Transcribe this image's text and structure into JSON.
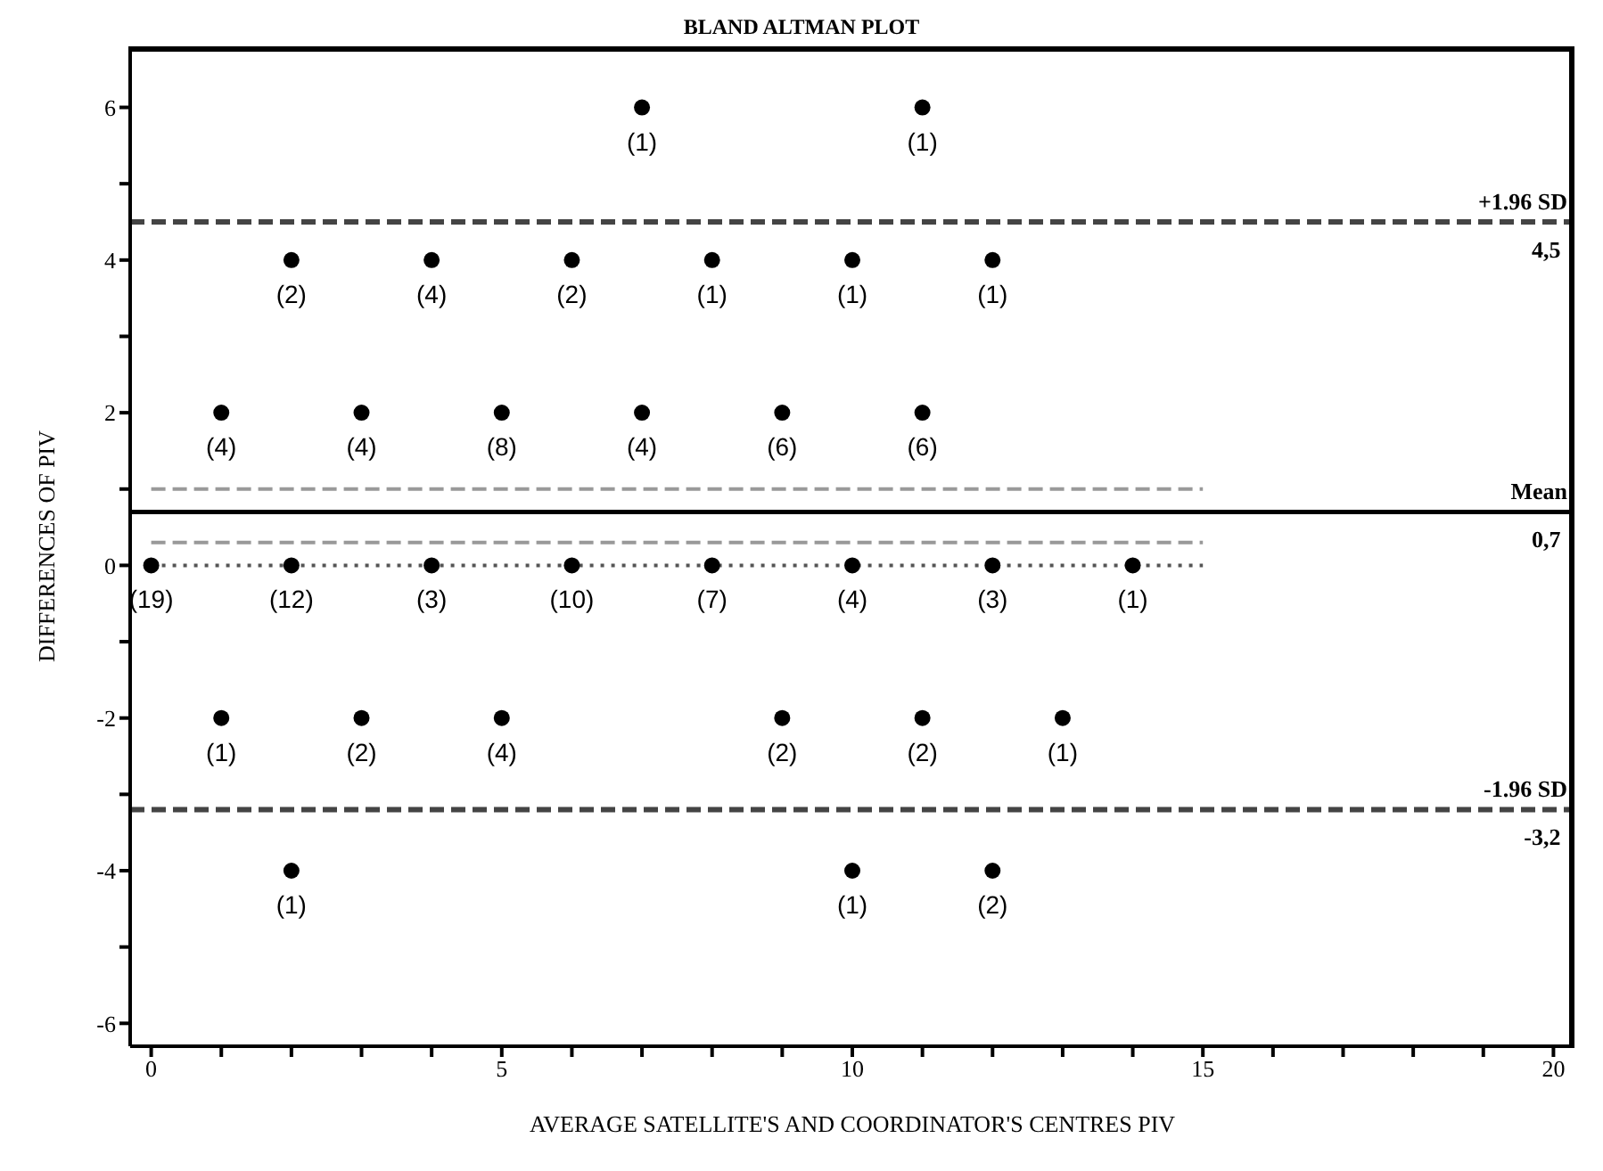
{
  "chart_data": {
    "type": "scatter",
    "title": "BLAND ALTMAN PLOT",
    "xlabel": "AVERAGE SATELLITE'S AND COORDINATOR'S CENTRES PIV",
    "ylabel": "DIFFERENCES OF PIV",
    "xlim": [
      -0.3,
      20.3
    ],
    "xticks": [
      0,
      {
        "value": 1,
        "label": null
      },
      {
        "value": 2,
        "label": null
      },
      {
        "value": 3,
        "label": null
      },
      {
        "value": 4,
        "label": null
      },
      5,
      {
        "value": 6,
        "label": null
      },
      {
        "value": 7,
        "label": null
      },
      {
        "value": 8,
        "label": null
      },
      {
        "value": 9,
        "label": null
      },
      10,
      {
        "value": 11,
        "label": null
      },
      {
        "value": 12,
        "label": null
      },
      {
        "value": 13,
        "label": null
      },
      {
        "value": 14,
        "label": null
      },
      15,
      {
        "value": 16,
        "label": null
      },
      {
        "value": 17,
        "label": null
      },
      {
        "value": 18,
        "label": null
      },
      {
        "value": 19,
        "label": null
      },
      20
    ],
    "ylim": [
      -6.3,
      6.8
    ],
    "yticks": [
      -6,
      {
        "value": -5,
        "label": null
      },
      -4,
      {
        "value": -3,
        "label": null
      },
      -2,
      {
        "value": -1,
        "label": null
      },
      0,
      {
        "value": 1,
        "label": null
      },
      2,
      {
        "value": 3,
        "label": null
      },
      4,
      {
        "value": 5,
        "label": null
      },
      6
    ],
    "grid": false,
    "series": [
      {
        "type": "line",
        "color": "#999999",
        "line_style": "dashed",
        "marker": "none",
        "x": [
          0,
          15
        ],
        "values": [
          1.0,
          1.0
        ]
      },
      {
        "type": "line",
        "color": "#999999",
        "line_style": "dashed",
        "marker": "none",
        "x": [
          0,
          15
        ],
        "values": [
          0.3,
          0.3
        ]
      },
      {
        "type": "line",
        "color": "#555555",
        "line_style": "dotted",
        "marker": "none",
        "x": [
          0,
          15
        ],
        "values": [
          0,
          0
        ]
      },
      {
        "color": "#000000",
        "marker": "circle",
        "x": [
          7,
          11,
          2,
          4,
          6,
          8,
          10,
          12,
          1,
          3,
          5,
          7,
          9,
          11,
          0,
          2,
          4,
          6,
          8,
          10,
          12,
          14,
          1,
          3,
          5,
          9,
          11,
          13,
          2,
          10,
          12
        ],
        "values": [
          6,
          6,
          4,
          4,
          4,
          4,
          4,
          4,
          2,
          2,
          2,
          2,
          2,
          2,
          0,
          0,
          0,
          0,
          0,
          0,
          0,
          0,
          -2,
          -2,
          -2,
          -2,
          -2,
          -2,
          -4,
          -4,
          -4
        ]
      }
    ],
    "ref_lines": [
      {
        "axis": "y",
        "value": 4.5,
        "label": "+1.96 SD",
        "color": "#444444",
        "line_style": "dashed"
      },
      {
        "axis": "y",
        "value": 0.7,
        "label": "Mean",
        "color": "#000000",
        "line_style": "solid"
      },
      {
        "axis": "y",
        "value": -3.2,
        "label": "-1.96 SD",
        "color": "#444444",
        "line_style": "dashed"
      }
    ],
    "annotations": [
      {
        "text": "4,5",
        "x": 20,
        "y": 4.5
      },
      {
        "text": "0,7",
        "x": 20,
        "y": 0.7
      },
      {
        "text": "-3,2",
        "x": 20,
        "y": -3.2
      },
      {
        "text": "(1)",
        "x": 7,
        "y": 6
      },
      {
        "text": "(1)",
        "x": 11,
        "y": 6
      },
      {
        "text": "(2)",
        "x": 2,
        "y": 4
      },
      {
        "text": "(4)",
        "x": 4,
        "y": 4
      },
      {
        "text": "(2)",
        "x": 6,
        "y": 4
      },
      {
        "text": "(1)",
        "x": 8,
        "y": 4
      },
      {
        "text": "(1)",
        "x": 10,
        "y": 4
      },
      {
        "text": "(1)",
        "x": 12,
        "y": 4
      },
      {
        "text": "(4)",
        "x": 1,
        "y": 2
      },
      {
        "text": "(4)",
        "x": 3,
        "y": 2
      },
      {
        "text": "(8)",
        "x": 5,
        "y": 2
      },
      {
        "text": "(4)",
        "x": 7,
        "y": 2
      },
      {
        "text": "(6)",
        "x": 9,
        "y": 2
      },
      {
        "text": "(6)",
        "x": 11,
        "y": 2
      },
      {
        "text": "(19)",
        "x": 0,
        "y": 0
      },
      {
        "text": "(12)",
        "x": 2,
        "y": 0
      },
      {
        "text": "(3)",
        "x": 4,
        "y": 0
      },
      {
        "text": "(10)",
        "x": 6,
        "y": 0
      },
      {
        "text": "(7)",
        "x": 8,
        "y": 0
      },
      {
        "text": "(4)",
        "x": 10,
        "y": 0
      },
      {
        "text": "(3)",
        "x": 12,
        "y": 0
      },
      {
        "text": "(1)",
        "x": 14,
        "y": 0
      },
      {
        "text": "(1)",
        "x": 1,
        "y": -2
      },
      {
        "text": "(2)",
        "x": 3,
        "y": -2
      },
      {
        "text": "(4)",
        "x": 5,
        "y": -2
      },
      {
        "text": "(2)",
        "x": 9,
        "y": -2
      },
      {
        "text": "(2)",
        "x": 11,
        "y": -2
      },
      {
        "text": "(1)",
        "x": 13,
        "y": -2
      },
      {
        "text": "(1)",
        "x": 2,
        "y": -4
      },
      {
        "text": "(1)",
        "x": 10,
        "y": -4
      },
      {
        "text": "(2)",
        "x": 12,
        "y": -4
      }
    ]
  }
}
